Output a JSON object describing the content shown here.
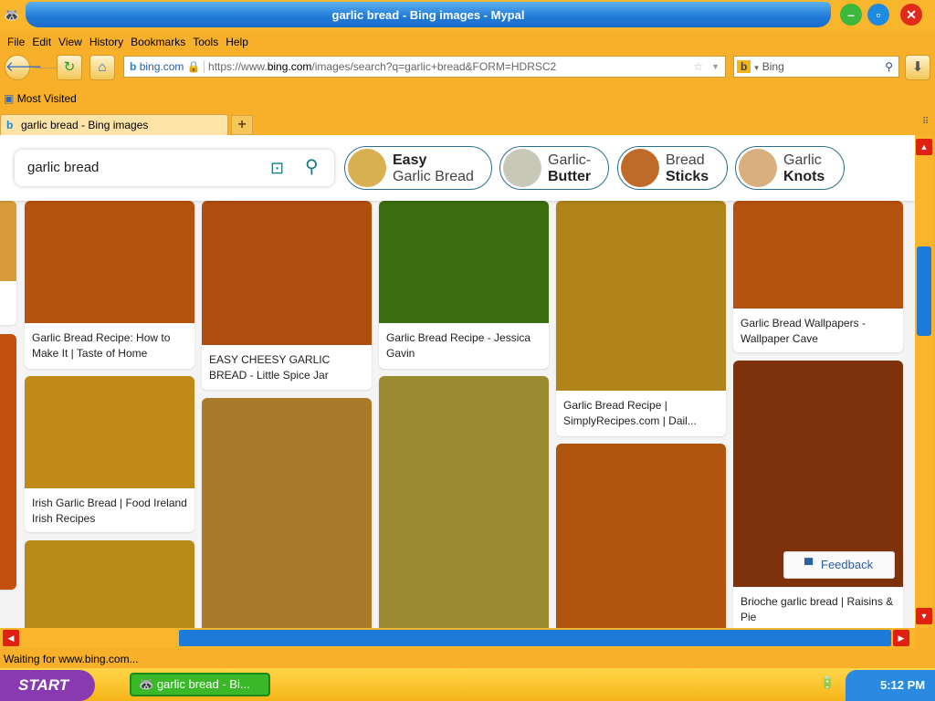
{
  "window": {
    "title": "garlic bread - Bing images - Mypal"
  },
  "menu": [
    "File",
    "Edit",
    "View",
    "History",
    "Bookmarks",
    "Tools",
    "Help"
  ],
  "nav": {
    "site_label": "bing.com",
    "url_prefix": "https://www.",
    "url_domain": "bing.com",
    "url_path": "/images/search?q=garlic+bread&FORM=HDRSC2",
    "search_engine": "Bing"
  },
  "bookmarks": {
    "most_visited": "Most Visited"
  },
  "tabs": [
    {
      "label": "garlic bread - Bing images"
    }
  ],
  "search": {
    "query": "garlic bread"
  },
  "pills": [
    {
      "top": "Easy",
      "bottom": "Garlic Bread",
      "bold": "top"
    },
    {
      "top": "Garlic-",
      "bottom": "Butter",
      "bold": "bottom"
    },
    {
      "top": "Bread",
      "bottom": "Sticks",
      "bold": "bottom"
    },
    {
      "top": "Garlic",
      "bottom": "Knots",
      "bold": "bottom"
    }
  ],
  "results": [
    {
      "caption": "Garlic Bread Recipe: How to Make It | Taste of Home",
      "color": "#b5520f"
    },
    {
      "caption": "Irish Garlic Bread | Food Ireland Irish Recipes",
      "color": "#c08a18"
    },
    {
      "caption": "",
      "color": "#b88a1a"
    },
    {
      "caption": "EASY CHEESY GARLIC BREAD - Little Spice Jar",
      "color": "#b04e10"
    },
    {
      "caption": "",
      "color": "#a87a2a"
    },
    {
      "caption": "Garlic Bread Recipe - Jessica Gavin",
      "color": "#3a6e10"
    },
    {
      "caption": "",
      "color": "#9a8a30"
    },
    {
      "caption": "Garlic Bread Recipe | SimplyRecipes.com | Dail...",
      "color": "#b08418"
    },
    {
      "caption": "",
      "color": "#b05510"
    },
    {
      "caption": "Garlic Bread Wallpapers - Wallpaper Cave",
      "color": "#b4520f"
    },
    {
      "caption": "Brioche garlic bread | Raisins & Pie",
      "color": "#7e320c"
    }
  ],
  "feedback": "Feedback",
  "status": "Waiting for www.bing.com...",
  "taskbar": {
    "start": "START",
    "task": "garlic bread - Bi...",
    "clock": "5:12 PM"
  }
}
